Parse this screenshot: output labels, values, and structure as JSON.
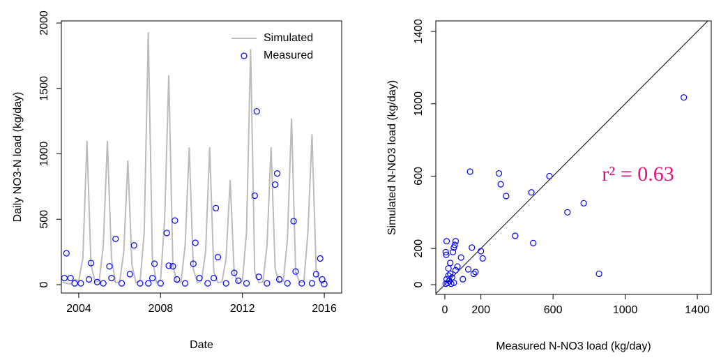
{
  "chart_data": [
    {
      "type": "line",
      "xlabel": "Date",
      "ylabel": "Daily NO3-N load (kg/day)",
      "xlim": [
        2003.15,
        2016.85
      ],
      "ylim": [
        -64,
        2016
      ],
      "xticks": [
        2004,
        2008,
        2012,
        2016
      ],
      "yticks": [
        0,
        500,
        1000,
        1500,
        2000
      ],
      "legend": "topright",
      "series": [
        {
          "name": "Simulated",
          "color": "#bbbbbb",
          "style": "line",
          "x": [
            2003.2,
            2003.4,
            2003.6,
            2003.8,
            2004.0,
            2004.2,
            2004.4,
            2004.6,
            2004.8,
            2005.0,
            2005.2,
            2005.4,
            2005.6,
            2005.8,
            2006.0,
            2006.2,
            2006.4,
            2006.6,
            2006.8,
            2007.0,
            2007.2,
            2007.4,
            2007.6,
            2007.8,
            2008.0,
            2008.2,
            2008.4,
            2008.6,
            2008.8,
            2009.0,
            2009.2,
            2009.4,
            2009.6,
            2009.8,
            2010.0,
            2010.2,
            2010.4,
            2010.6,
            2010.8,
            2011.0,
            2011.2,
            2011.4,
            2011.6,
            2011.8,
            2012.0,
            2012.2,
            2012.4,
            2012.6,
            2012.8,
            2013.0,
            2013.2,
            2013.4,
            2013.6,
            2013.8,
            2014.0,
            2014.2,
            2014.4,
            2014.6,
            2014.8,
            2015.0,
            2015.2,
            2015.4,
            2015.6,
            2015.8,
            2016.0
          ],
          "values": [
            20,
            10,
            5,
            40,
            30,
            200,
            1100,
            150,
            20,
            30,
            300,
            1100,
            200,
            15,
            20,
            250,
            950,
            150,
            15,
            30,
            400,
            1930,
            200,
            15,
            40,
            500,
            1600,
            150,
            15,
            20,
            300,
            1050,
            120,
            15,
            30,
            250,
            1050,
            100,
            15,
            20,
            200,
            800,
            80,
            10,
            30,
            400,
            1800,
            100,
            15,
            20,
            300,
            1050,
            120,
            15,
            30,
            350,
            1270,
            100,
            15,
            20,
            400,
            1150,
            120,
            15,
            10
          ]
        },
        {
          "name": "Measured",
          "color": "#0000ff",
          "style": "points",
          "x": [
            2003.3,
            2003.4,
            2003.6,
            2003.8,
            2004.1,
            2004.5,
            2004.6,
            2004.9,
            2005.2,
            2005.5,
            2005.6,
            2005.8,
            2006.1,
            2006.5,
            2006.7,
            2007.0,
            2007.4,
            2007.6,
            2007.7,
            2008.0,
            2008.3,
            2008.4,
            2008.6,
            2008.7,
            2008.8,
            2009.2,
            2009.6,
            2009.7,
            2009.9,
            2010.3,
            2010.6,
            2010.7,
            2010.8,
            2011.2,
            2011.6,
            2011.8,
            2012.2,
            2012.6,
            2012.7,
            2012.8,
            2013.2,
            2013.6,
            2013.7,
            2013.8,
            2014.2,
            2014.5,
            2014.6,
            2014.9,
            2015.4,
            2015.6,
            2015.8,
            2015.9,
            2016.0
          ],
          "values": [
            50,
            240,
            50,
            10,
            10,
            40,
            165,
            20,
            10,
            140,
            50,
            350,
            10,
            80,
            300,
            10,
            10,
            50,
            160,
            10,
            395,
            145,
            140,
            490,
            40,
            10,
            160,
            320,
            50,
            10,
            50,
            585,
            210,
            10,
            90,
            30,
            10,
            680,
            1325,
            60,
            10,
            765,
            850,
            40,
            10,
            485,
            100,
            10,
            10,
            80,
            200,
            40,
            5
          ]
        }
      ]
    },
    {
      "type": "scatter",
      "xlabel": "Measured N-NO3 load (kg/day)",
      "ylabel": "Simulated N-NO3 load (kg/day)",
      "xlim": [
        -50,
        1477
      ],
      "ylim": [
        -54,
        1458
      ],
      "xticks": [
        0,
        200,
        600,
        1000,
        1400
      ],
      "yticks": [
        0,
        200,
        600,
        1000,
        1400
      ],
      "color": "#0000ff",
      "diagonal": true,
      "annotation": "r² = 0.63",
      "annotation_color": "#e0137c",
      "x": [
        1325,
        855,
        770,
        680,
        580,
        490,
        480,
        390,
        340,
        310,
        300,
        140,
        150,
        200,
        210,
        130,
        160,
        170,
        90,
        60,
        50,
        45,
        55,
        10,
        5,
        8,
        20,
        30,
        40,
        70,
        100,
        15,
        25,
        35,
        5,
        10,
        50,
        60,
        30,
        20
      ],
      "values": [
        1035,
        60,
        450,
        400,
        600,
        230,
        510,
        270,
        490,
        555,
        615,
        625,
        205,
        185,
        145,
        85,
        60,
        70,
        150,
        240,
        205,
        180,
        220,
        240,
        180,
        165,
        90,
        60,
        40,
        100,
        30,
        10,
        20,
        5,
        5,
        30,
        10,
        80,
        120,
        50
      ]
    }
  ]
}
